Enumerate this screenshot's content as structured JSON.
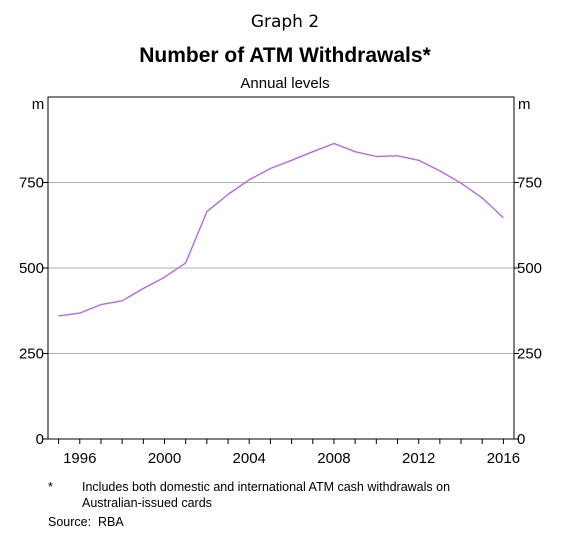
{
  "header": {
    "graph_label": "Graph 2",
    "title": "Number of ATM Withdrawals*",
    "subtitle": "Annual levels"
  },
  "footnote": {
    "marker": "*",
    "text": "Includes both domestic and international ATM cash withdrawals on Australian-issued cards"
  },
  "source": {
    "label": "Source:",
    "value": "RBA"
  },
  "colors": {
    "series": "#b36ae2",
    "grid": "#b0b0b0",
    "axis": "#000000"
  },
  "chart_data": {
    "type": "line",
    "title": "Number of ATM Withdrawals*",
    "subtitle": "Annual levels",
    "ylabel_left": "m",
    "ylabel_right": "m",
    "ylim": [
      0,
      1000
    ],
    "yticks": [
      0,
      250,
      500,
      750
    ],
    "xlim": [
      1994.5,
      2016.5
    ],
    "xticks": [
      1996,
      2000,
      2004,
      2008,
      2012,
      2016
    ],
    "grid": true,
    "legend": "none",
    "series": [
      {
        "x": [
          1995,
          1996,
          1997,
          1998,
          1999,
          2000,
          2001,
          2002,
          2003,
          2004,
          2005,
          2006,
          2007,
          2008,
          2009,
          2010,
          2011,
          2012,
          2013,
          2014,
          2015,
          2016
        ],
        "values": [
          360,
          368,
          393,
          404,
          440,
          473,
          515,
          665,
          715,
          758,
          791,
          815,
          840,
          864,
          840,
          826,
          828,
          815,
          784,
          748,
          705,
          647
        ]
      }
    ]
  }
}
